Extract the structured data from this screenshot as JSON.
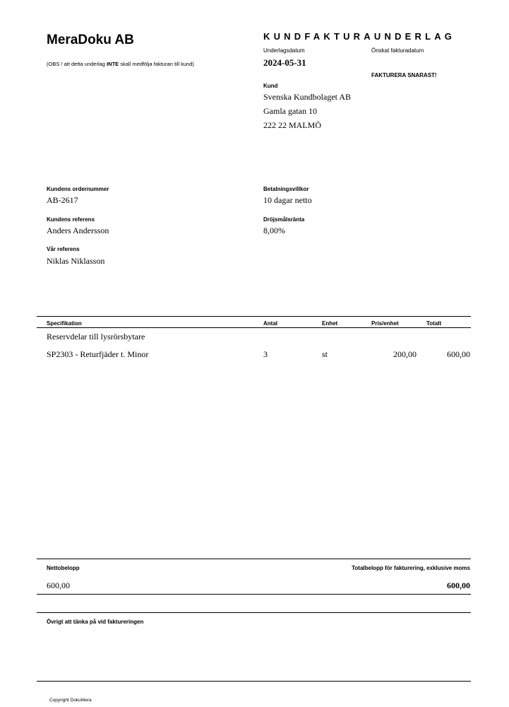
{
  "company": "MeraDoku AB",
  "notice": {
    "pre": "(OBS ! att detta underlag ",
    "bold": "INTE",
    "post": " skall medfölja fakturan till kund)"
  },
  "doc_title": "KUNDFAKTURAUNDERLAG",
  "underlagsdatum": {
    "label": "Underlagsdatum",
    "value": "2024-05-31"
  },
  "onskat_fakturadatum": {
    "label": "Önskat fakturadatum",
    "value": "FAKTURERA SNARAST!"
  },
  "kund": {
    "label": "Kund",
    "name": "Svenska Kundbolaget AB",
    "address": "Gamla gatan 10",
    "city": "222 22 MALMÖ"
  },
  "ordernummer": {
    "label": "Kundens ordernummer",
    "value": "AB-2617"
  },
  "kundens_referens": {
    "label": "Kundens referens",
    "value": "Anders Andersson"
  },
  "var_referens": {
    "label": "Vår referens",
    "value": "Niklas Niklasson"
  },
  "betalningsvillkor": {
    "label": "Betalningsvillkor",
    "value": "10 dagar netto"
  },
  "drojsmalsranta": {
    "label": "Dröjsmålsränta",
    "value": "8,00%"
  },
  "table": {
    "headers": {
      "spec": "Specifikation",
      "antal": "Antal",
      "enhet": "Enhet",
      "pris": "Pris/enhet",
      "totalt": "Totalt"
    },
    "group": "Reservdelar till lysrörsbytare",
    "rows": [
      {
        "spec": "SP2303 - Returfjäder t. Minor",
        "antal": "3",
        "enhet": "st",
        "pris": "200,00",
        "totalt": "600,00"
      }
    ]
  },
  "summary": {
    "netto_label": "Nettobelopp",
    "netto_value": "600,00",
    "total_label": "Totalbelopp för fakturering, exklusive moms",
    "total_value": "600,00"
  },
  "ovrigt_label": "Övrigt att tänka på vid faktureringen",
  "footer": "Copyright DokuMera"
}
